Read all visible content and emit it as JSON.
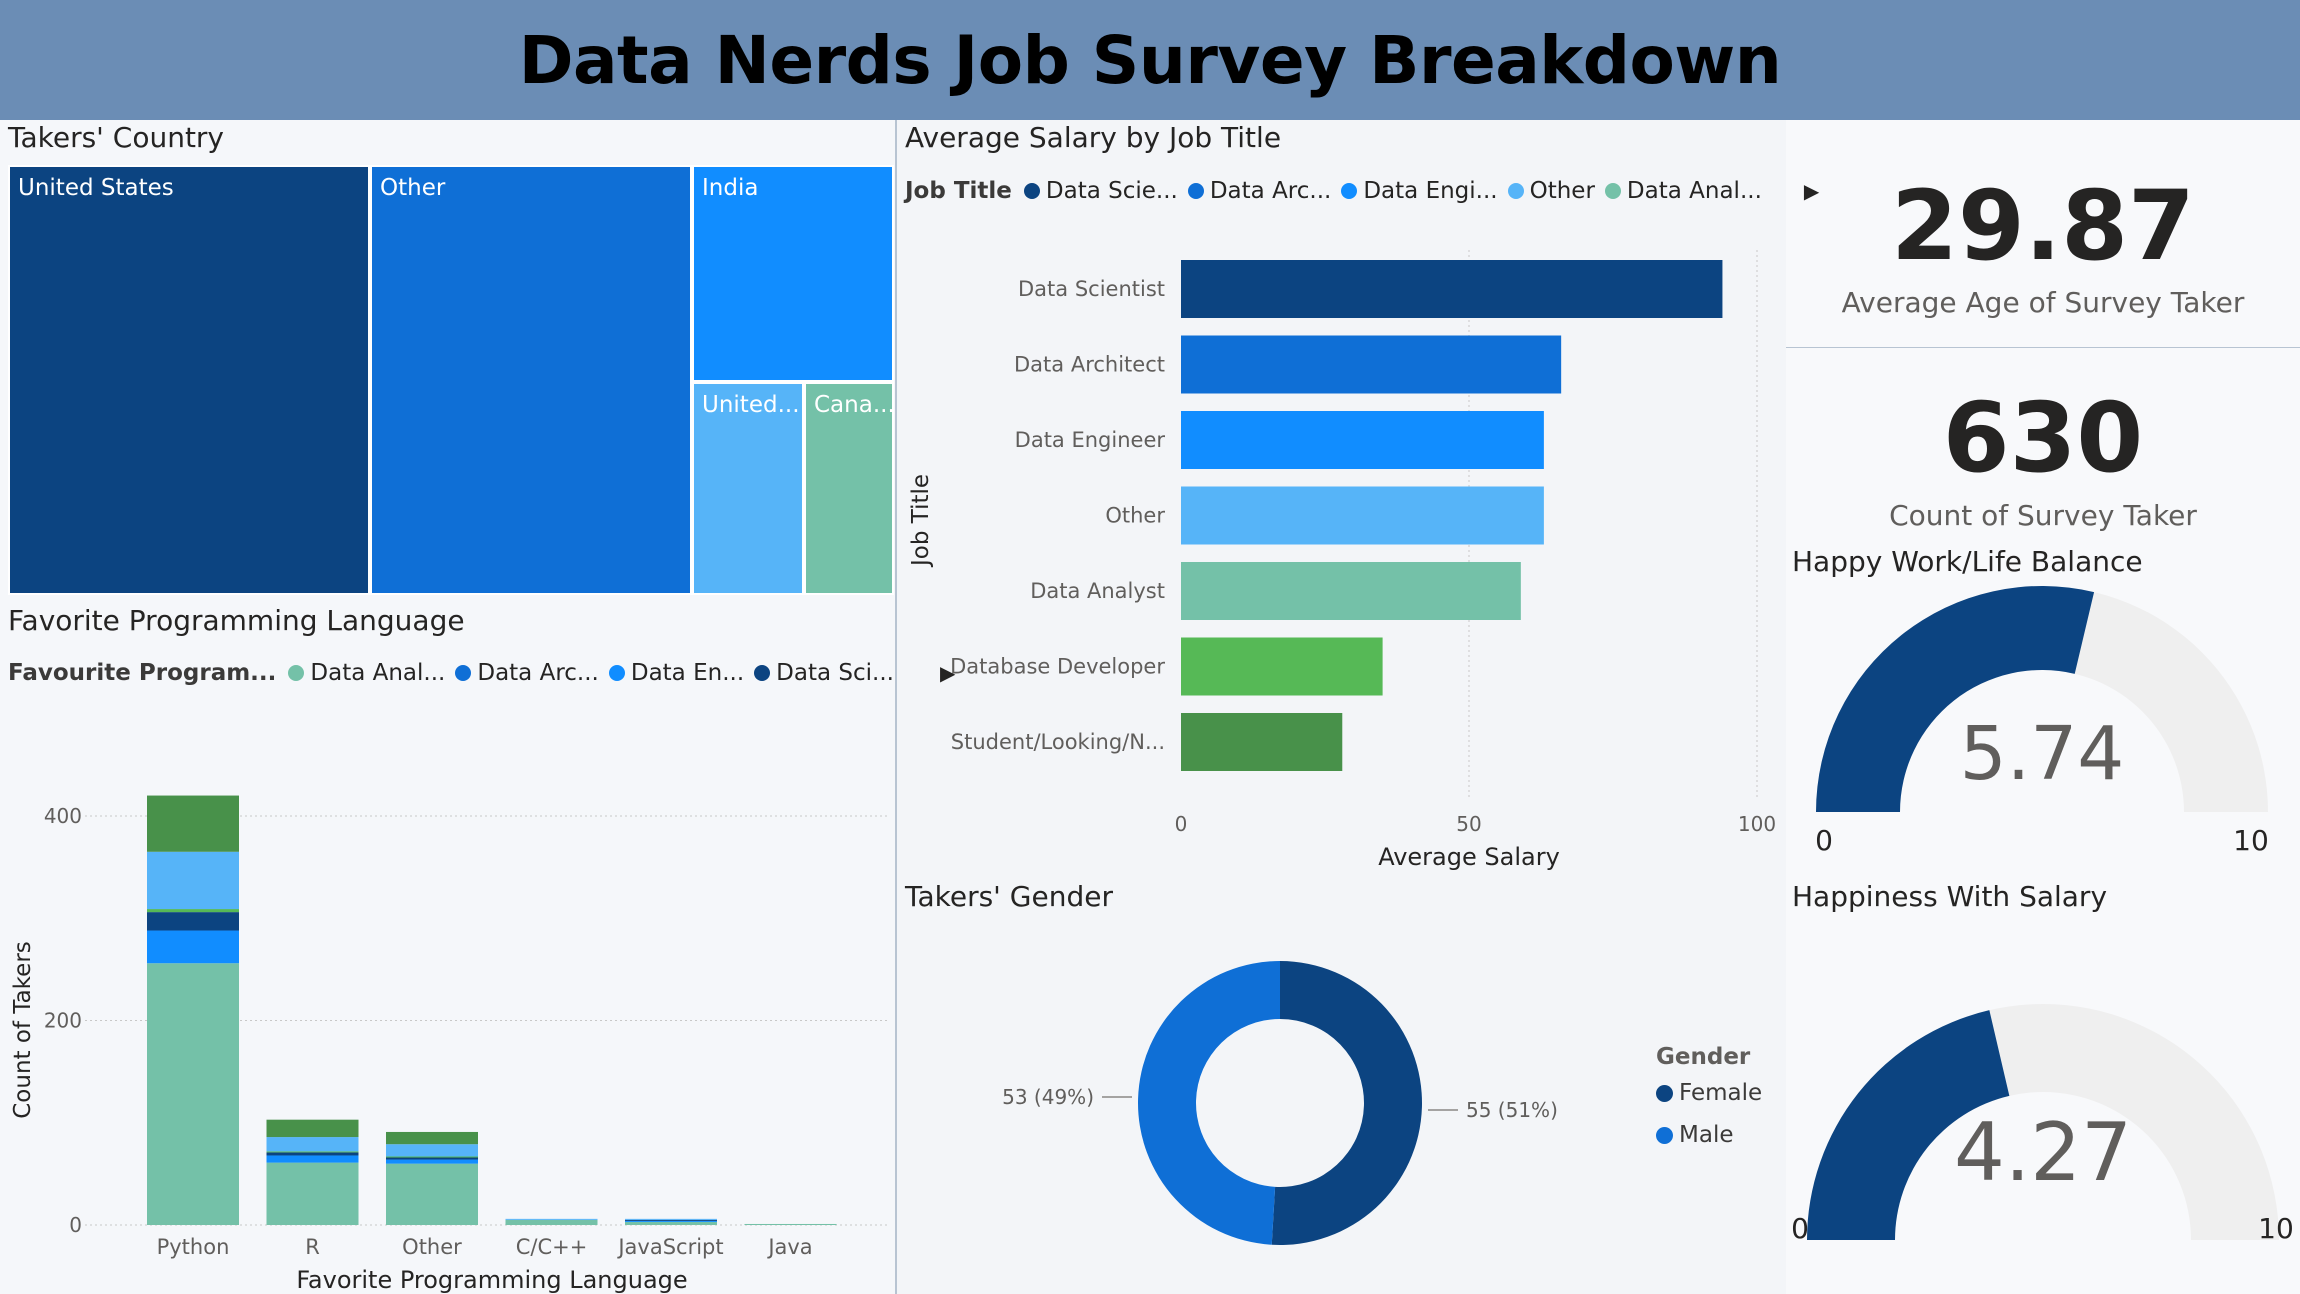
{
  "header": {
    "title": "Data Nerds Job Survey Breakdown"
  },
  "colors": {
    "navy": "#0c4481",
    "blue": "#0f6fd6",
    "bright_blue": "#118dff",
    "light_blue": "#56b4f8",
    "teal": "#74c1a8",
    "green": "#56b956",
    "dark_green": "#48914a",
    "gauge_bg": "#efefef"
  },
  "treemap": {
    "title": "Takers' Country",
    "tiles": [
      {
        "label": "United States",
        "color": "#0c4481"
      },
      {
        "label": "Other",
        "color": "#0f6fd6"
      },
      {
        "label": "India",
        "color": "#118dff"
      },
      {
        "label": "United...",
        "color": "#56b4f8"
      },
      {
        "label": "Cana...",
        "color": "#74c1a8"
      }
    ]
  },
  "salary_chart": {
    "title": "Average Salary by Job Title",
    "legend_title": "Job Title",
    "legend_items": [
      {
        "label": "Data Scie...",
        "color": "#0c4481"
      },
      {
        "label": "Data Arc...",
        "color": "#0f6fd6"
      },
      {
        "label": "Data Engi...",
        "color": "#118dff"
      },
      {
        "label": "Other",
        "color": "#56b4f8"
      },
      {
        "label": "Data Anal...",
        "color": "#74c1a8"
      }
    ]
  },
  "language_chart": {
    "title": "Favorite Programming Language",
    "legend_title": "Favourite Program...",
    "legend_items": [
      {
        "label": "Data Anal...",
        "color": "#74c1a8"
      },
      {
        "label": "Data Arc...",
        "color": "#0f6fd6"
      },
      {
        "label": "Data En...",
        "color": "#118dff"
      },
      {
        "label": "Data Sci...",
        "color": "#0c4481"
      }
    ]
  },
  "kpis": {
    "avg_age": {
      "value": "29.87",
      "label": "Average Age of Survey Taker"
    },
    "count": {
      "value": "630",
      "label": "Count of Survey Taker"
    }
  },
  "gauges": {
    "work_life": {
      "title": "Happy Work/Life Balance",
      "value": 5.74,
      "value_text": "5.74",
      "min": 0,
      "max": 10,
      "min_label": "0",
      "max_label": "10"
    },
    "salary": {
      "title": "Happiness With Salary",
      "value": 4.27,
      "value_text": "4.27",
      "min": 0,
      "max": 10,
      "min_label": "0",
      "max_label": "10"
    }
  },
  "gender": {
    "title": "Takers' Gender",
    "legend_title": "Gender"
  },
  "chart_data": [
    {
      "type": "treemap",
      "title": "Takers' Country",
      "categories": [
        "United States",
        "Other",
        "India",
        "United...",
        "Cana..."
      ],
      "values": [
        36,
        31,
        15,
        8.5,
        6.5
      ]
    },
    {
      "type": "bar",
      "orientation": "horizontal",
      "title": "Average Salary by Job Title",
      "xlabel": "Average Salary",
      "ylabel": "Job Title",
      "xlim": [
        0,
        100
      ],
      "xticks": [
        "0",
        "50",
        "100"
      ],
      "categories": [
        "Data Scientist",
        "Data Architect",
        "Data Engineer",
        "Other",
        "Data Analyst",
        "Database Developer",
        "Student/Looking/N..."
      ],
      "values": [
        94,
        66,
        63,
        63,
        59,
        35,
        28
      ],
      "colors": [
        "#0c4481",
        "#0f6fd6",
        "#118dff",
        "#56b4f8",
        "#74c1a8",
        "#56b956",
        "#48914a"
      ],
      "legend": "top"
    },
    {
      "type": "bar",
      "stacked": true,
      "title": "Favorite Programming Language",
      "xlabel": "Favorite Programming Language",
      "ylabel": "Count of Takers",
      "ylim": [
        0,
        420
      ],
      "yticks": [
        "0",
        "200",
        "400"
      ],
      "categories": [
        "Python",
        "R",
        "Other",
        "C/C++",
        "JavaScript",
        "Java"
      ],
      "series": [
        {
          "color": "#74c1a8",
          "values": [
            256,
            61,
            60,
            5,
            3,
            1
          ]
        },
        {
          "color": "#118dff",
          "values": [
            32,
            7,
            4,
            0,
            1,
            0
          ]
        },
        {
          "color": "#0c4481",
          "values": [
            18,
            3,
            2,
            0,
            1,
            0
          ]
        },
        {
          "color": "#56b956",
          "values": [
            3,
            1,
            1,
            0,
            0,
            0
          ]
        },
        {
          "color": "#56b4f8",
          "values": [
            56,
            14,
            12,
            1,
            1,
            0
          ]
        },
        {
          "color": "#48914a",
          "values": [
            55,
            17,
            12,
            0,
            0,
            0
          ]
        }
      ],
      "legend": "top"
    },
    {
      "type": "pie",
      "donut": true,
      "title": "Takers' Gender",
      "categories": [
        "Female",
        "Male"
      ],
      "values": [
        55,
        53
      ],
      "data_labels": [
        "55 (51%)",
        "53 (49%)"
      ],
      "colors": [
        "#0c4481",
        "#0f6fd6"
      ],
      "legend": "right"
    }
  ]
}
